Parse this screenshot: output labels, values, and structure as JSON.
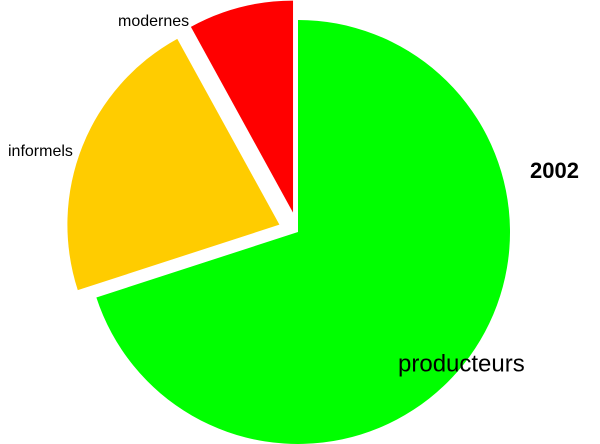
{
  "chart_data": {
    "type": "pie",
    "title": "2002",
    "categories": [
      "producteurs",
      "informels",
      "modernes"
    ],
    "values": [
      70,
      22,
      8
    ],
    "colors": [
      "#00ff00",
      "#ffcc00",
      "#ff0000"
    ]
  }
}
